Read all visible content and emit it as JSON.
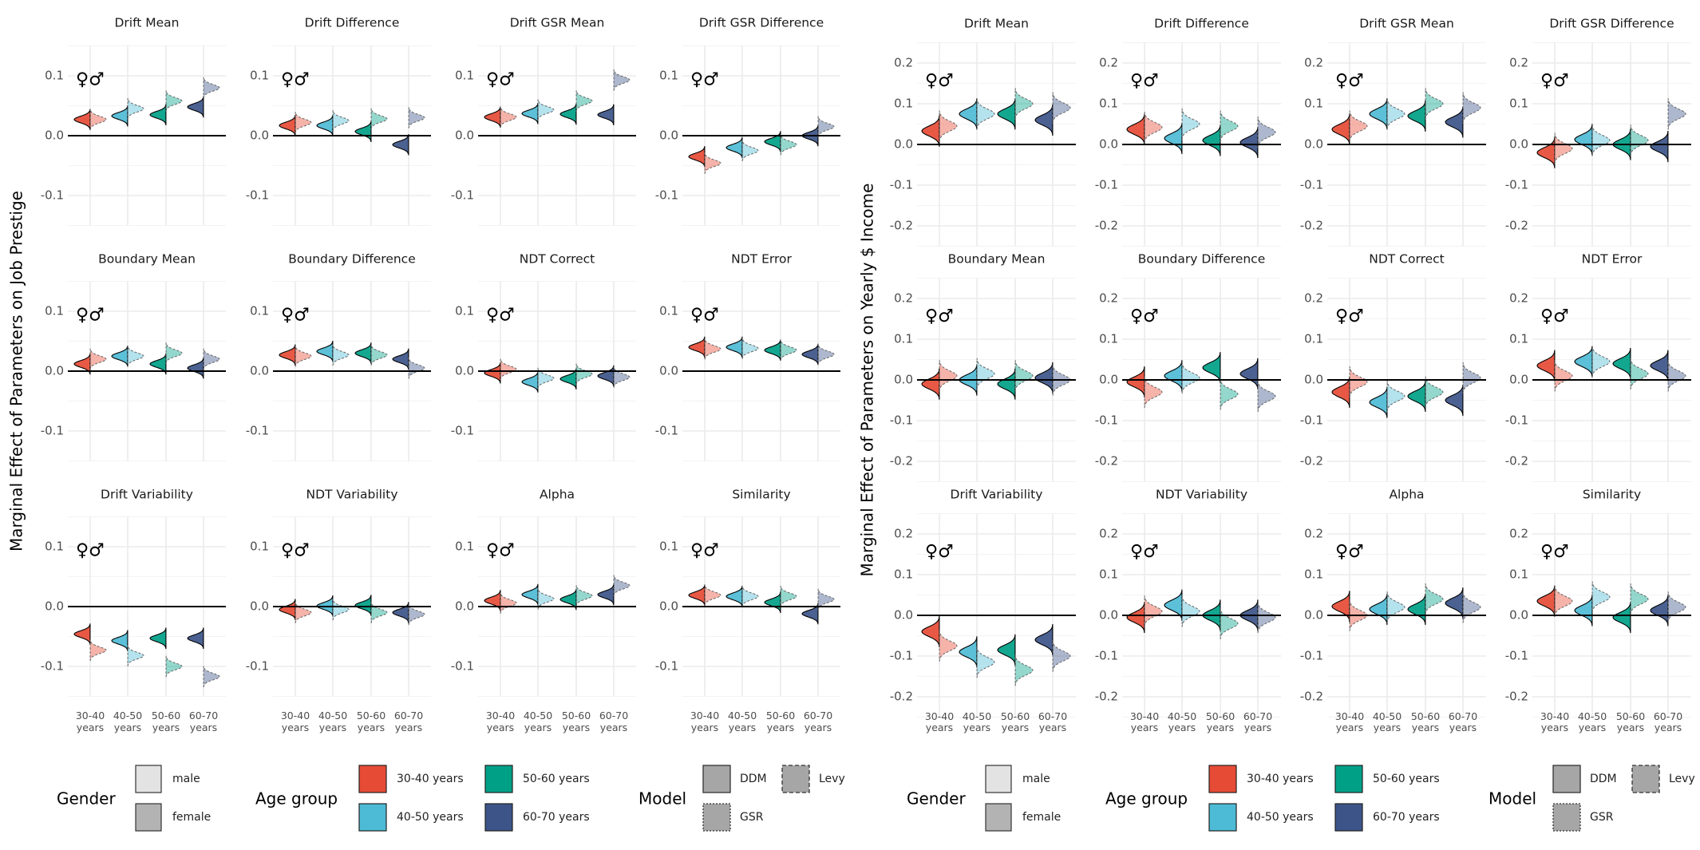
{
  "gender_symbols": "♀♂",
  "age_groups": [
    "30-40 years",
    "40-50 years",
    "50-60 years",
    "60-70 years"
  ],
  "age_tick_labels": [
    [
      "30-40",
      "years"
    ],
    [
      "40-50",
      "years"
    ],
    [
      "50-60",
      "years"
    ],
    [
      "60-70",
      "years"
    ]
  ],
  "colors": {
    "30-40 years": "#E64B35",
    "40-50 years": "#4DBBD5",
    "50-60 years": "#00A087",
    "60-70 years": "#3C5488",
    "male": "#E3E3E3",
    "female": "#B3B3B3",
    "model": "#A6A6A6"
  },
  "legend": {
    "gender": {
      "title": "Gender",
      "items": [
        "male",
        "female"
      ]
    },
    "age": {
      "title": "Age group",
      "items": [
        "30-40 years",
        "40-50 years",
        "50-60 years",
        "60-70 years"
      ]
    },
    "model": {
      "title": "Model",
      "items": [
        {
          "label": "DDM",
          "line": "solid"
        },
        {
          "label": "Levy",
          "line": "dashed"
        },
        {
          "label": "GSR",
          "line": "dotted"
        }
      ]
    }
  },
  "chart_data": [
    {
      "type": "violin",
      "ylabel": "Marginal Effect of Parameters on Job Prestige",
      "ylim": [
        -0.15,
        0.15
      ],
      "yticks": [
        -0.1,
        0.0,
        0.1
      ],
      "ytick_labels": [
        "-0.1",
        "0.0",
        "0.1"
      ],
      "grid": true,
      "categories": [
        "30-40 years",
        "40-50 years",
        "50-60 years",
        "60-70 years"
      ],
      "panels": [
        {
          "title": "Drift Mean",
          "female": [
            0.027,
            0.033,
            0.035,
            0.048
          ],
          "male": [
            0.027,
            0.045,
            0.058,
            0.08
          ]
        },
        {
          "title": "Drift Difference",
          "female": [
            0.017,
            0.017,
            0.007,
            -0.015
          ],
          "male": [
            0.022,
            0.025,
            0.028,
            0.03
          ]
        },
        {
          "title": "Drift GSR Mean",
          "female": [
            0.031,
            0.037,
            0.036,
            0.035
          ],
          "male": [
            0.031,
            0.043,
            0.058,
            0.093
          ]
        },
        {
          "title": "Drift GSR Difference",
          "female": [
            -0.035,
            -0.02,
            -0.01,
            0.0
          ],
          "male": [
            -0.046,
            -0.025,
            -0.015,
            0.015
          ]
        },
        {
          "title": "Boundary Mean",
          "female": [
            0.012,
            0.025,
            0.012,
            0.005
          ],
          "male": [
            0.02,
            0.025,
            0.03,
            0.02
          ]
        },
        {
          "title": "Boundary Difference",
          "female": [
            0.027,
            0.033,
            0.03,
            0.02
          ],
          "male": [
            0.025,
            0.027,
            0.027,
            0.005
          ]
        },
        {
          "title": "NDT Correct",
          "female": [
            -0.003,
            -0.018,
            -0.013,
            -0.008
          ],
          "male": [
            0.003,
            -0.012,
            -0.005,
            -0.01
          ]
        },
        {
          "title": "NDT Error",
          "female": [
            0.04,
            0.04,
            0.035,
            0.028
          ],
          "male": [
            0.037,
            0.038,
            0.035,
            0.028
          ]
        },
        {
          "title": "Drift Variability",
          "female": [
            -0.046,
            -0.057,
            -0.053,
            -0.053
          ],
          "male": [
            -0.073,
            -0.082,
            -0.1,
            -0.117
          ]
        },
        {
          "title": "NDT Variability",
          "female": [
            -0.005,
            0.001,
            0.002,
            -0.01
          ],
          "male": [
            -0.01,
            -0.005,
            -0.01,
            -0.013
          ]
        },
        {
          "title": "Alpha",
          "female": [
            0.01,
            0.02,
            0.012,
            0.02
          ],
          "male": [
            0.006,
            0.013,
            0.018,
            0.035
          ]
        },
        {
          "title": "Similarity",
          "female": [
            0.019,
            0.017,
            0.007,
            -0.012
          ],
          "male": [
            0.019,
            0.017,
            0.017,
            0.012
          ]
        }
      ]
    },
    {
      "type": "violin",
      "ylabel": "Marginal Effect of Parameters on Yearly $ Income",
      "ylim": [
        -0.25,
        0.25
      ],
      "yticks": [
        -0.2,
        -0.1,
        0.0,
        0.1,
        0.2
      ],
      "ytick_labels": [
        "-0.2",
        "-0.1",
        "0.0",
        "0.1",
        "0.2"
      ],
      "grid": true,
      "categories": [
        "30-40 years",
        "40-50 years",
        "50-60 years",
        "60-70 years"
      ],
      "panels": [
        {
          "title": "Drift Mean",
          "female": [
            0.033,
            0.075,
            0.075,
            0.06
          ],
          "male": [
            0.045,
            0.075,
            0.1,
            0.09
          ]
        },
        {
          "title": "Drift Difference",
          "female": [
            0.037,
            0.015,
            0.01,
            0.005
          ],
          "male": [
            0.042,
            0.05,
            0.045,
            0.03
          ]
        },
        {
          "title": "Drift GSR Mean",
          "female": [
            0.037,
            0.075,
            0.07,
            0.055
          ],
          "male": [
            0.045,
            0.075,
            0.1,
            0.09
          ]
        },
        {
          "title": "Drift GSR Difference",
          "female": [
            -0.02,
            0.012,
            0.0,
            -0.005
          ],
          "male": [
            -0.01,
            0.01,
            0.01,
            0.075
          ]
        },
        {
          "title": "Boundary Mean",
          "female": [
            -0.01,
            0.0,
            -0.01,
            0.005
          ],
          "male": [
            0.01,
            0.015,
            0.01,
            0.0
          ]
        },
        {
          "title": "Boundary Difference",
          "female": [
            -0.005,
            0.01,
            0.03,
            0.015
          ],
          "male": [
            -0.03,
            0.005,
            -0.035,
            -0.04
          ]
        },
        {
          "title": "NDT Correct",
          "female": [
            -0.03,
            -0.055,
            -0.04,
            -0.05
          ],
          "male": [
            -0.005,
            -0.04,
            -0.03,
            0.005
          ]
        },
        {
          "title": "NDT Error",
          "female": [
            0.035,
            0.045,
            0.04,
            0.035
          ],
          "male": [
            0.01,
            0.045,
            0.015,
            0.01
          ]
        },
        {
          "title": "Drift Variability",
          "female": [
            -0.04,
            -0.09,
            -0.085,
            -0.06
          ],
          "male": [
            -0.075,
            -0.115,
            -0.135,
            -0.1
          ]
        },
        {
          "title": "NDT Variability",
          "female": [
            -0.005,
            0.025,
            0.0,
            0.0
          ],
          "male": [
            0.01,
            0.01,
            -0.02,
            -0.005
          ]
        },
        {
          "title": "Alpha",
          "female": [
            0.022,
            0.015,
            0.015,
            0.03
          ],
          "male": [
            0.0,
            0.02,
            0.04,
            0.02
          ]
        },
        {
          "title": "Similarity",
          "female": [
            0.035,
            0.012,
            -0.005,
            0.012
          ],
          "male": [
            0.035,
            0.045,
            0.04,
            0.02
          ]
        }
      ]
    }
  ]
}
